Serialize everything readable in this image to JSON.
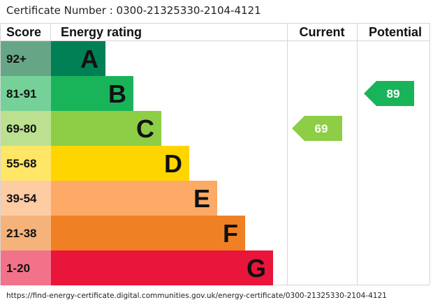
{
  "certificate_text": "Certificate Number : 0300-21325330-2104-4121",
  "url_text": "https://find-energy-certificate.digital.communities.gov.uk/energy-certificate/0300-21325330-2104-4121",
  "chart_data": {
    "type": "table",
    "headers": {
      "score": "Score",
      "rating": "Energy rating",
      "current": "Current",
      "potential": "Potential"
    },
    "bands": [
      {
        "letter": "A",
        "range": "92+",
        "color": "#008054",
        "light": "#66a687"
      },
      {
        "letter": "B",
        "range": "81-91",
        "color": "#19b459",
        "light": "#75d198"
      },
      {
        "letter": "C",
        "range": "69-80",
        "color": "#8dce46",
        "light": "#bbe190"
      },
      {
        "letter": "D",
        "range": "55-68",
        "color": "#ffd500",
        "light": "#ffe666"
      },
      {
        "letter": "E",
        "range": "39-54",
        "color": "#fcaa65",
        "light": "#fdcca3"
      },
      {
        "letter": "F",
        "range": "21-38",
        "color": "#ef8023",
        "light": "#f5b37b"
      },
      {
        "letter": "G",
        "range": "1-20",
        "color": "#e9153b",
        "light": "#f27389"
      }
    ],
    "current": {
      "value": "69",
      "band": "C",
      "color": "#8dce46"
    },
    "potential": {
      "value": "89",
      "band": "B",
      "color": "#19b459"
    }
  }
}
